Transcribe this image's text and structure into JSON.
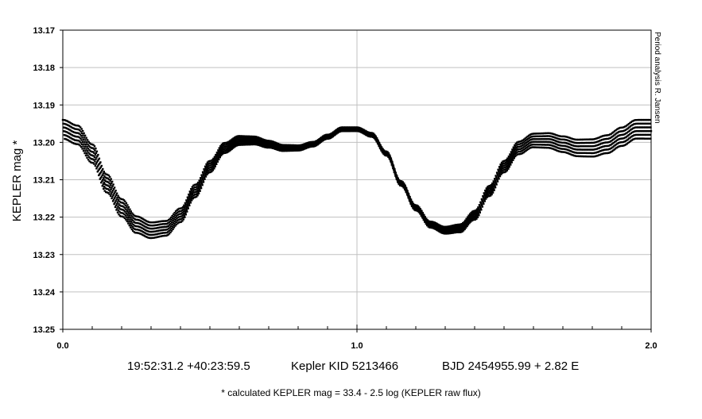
{
  "chart_data": {
    "type": "scatter",
    "title": "",
    "ylabel": "KEPLER mag *",
    "xlabel": "",
    "xlim": [
      0.0,
      2.0
    ],
    "ylim": [
      13.25,
      13.17
    ],
    "y_axis_inverted": true,
    "x_ticks": [
      "0.0",
      "1.0",
      "2.0"
    ],
    "y_ticks": [
      "13.17",
      "13.18",
      "13.19",
      "13.20",
      "13.21",
      "13.22",
      "13.23",
      "13.24",
      "13.25"
    ],
    "grid": true,
    "marker_color": "#000000",
    "phase_curve": {
      "phase": [
        0.0,
        0.05,
        0.1,
        0.15,
        0.2,
        0.25,
        0.3,
        0.35,
        0.4,
        0.45,
        0.5,
        0.55,
        0.6,
        0.65,
        0.7,
        0.75,
        0.8,
        0.85,
        0.9,
        0.95,
        1.0
      ],
      "mag": [
        13.1965,
        13.198,
        13.203,
        13.211,
        13.2175,
        13.222,
        13.2235,
        13.223,
        13.2195,
        13.213,
        13.2065,
        13.2015,
        13.1995,
        13.1995,
        13.2005,
        13.2015,
        13.2015,
        13.2005,
        13.1985,
        13.1965,
        13.1965
      ]
    },
    "cycle_offsets": [
      -0.0025,
      -0.0015,
      -0.0005,
      0.0005,
      0.0015,
      0.0025
    ],
    "credit": "Period analysis  R. Jansen",
    "caption": {
      "coords": "19:52:31.2 +40:23:59.5",
      "kid": "Kepler KID 5213466",
      "epoch": "BJD 2454955.99 + 2.82 E"
    },
    "footnote": "* calculated KEPLER mag = 33.4 - 2.5 log (KEPLER raw flux)"
  }
}
